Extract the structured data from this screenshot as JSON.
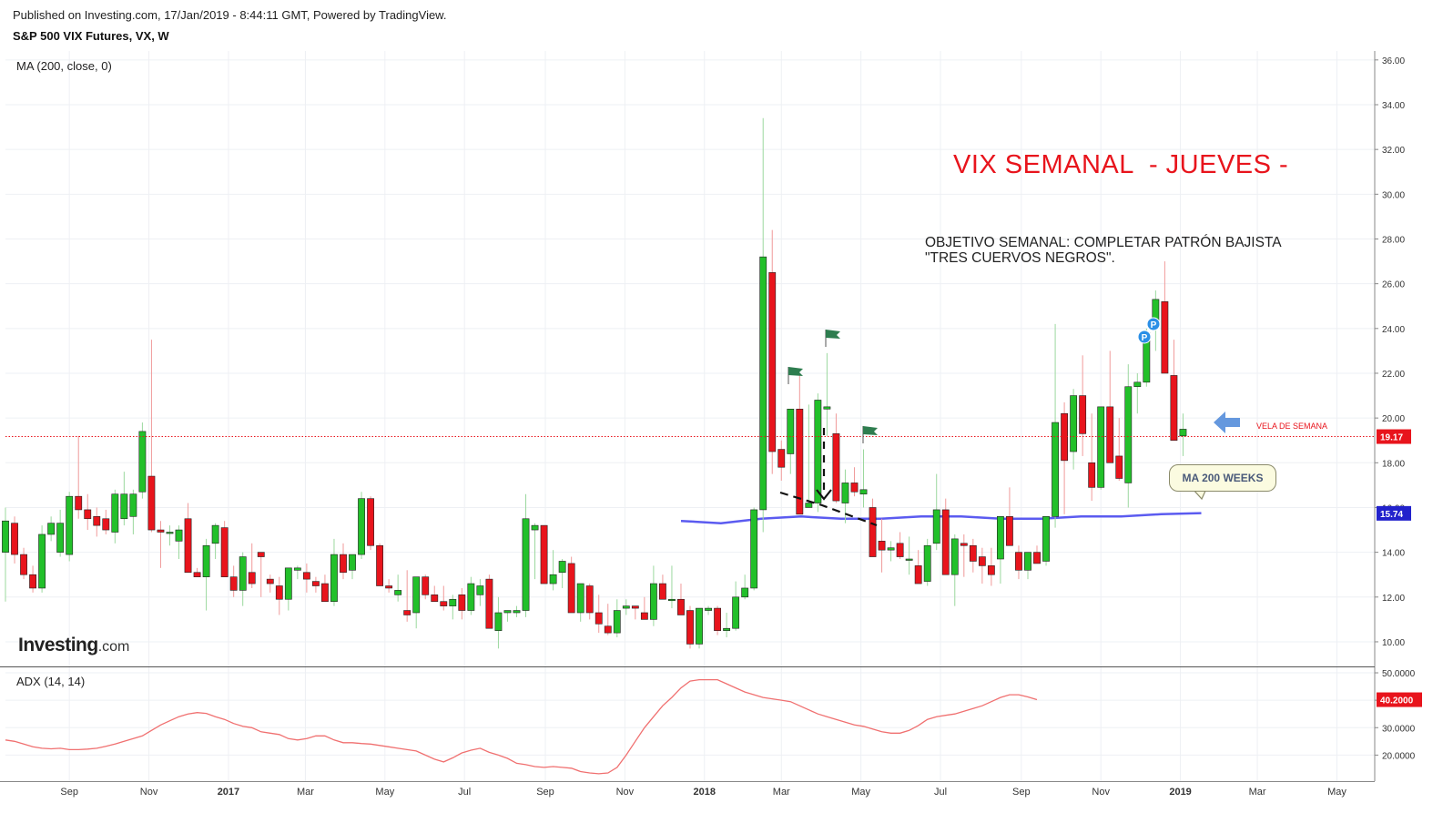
{
  "header": {
    "published": "Published on Investing.com, 17/Jan/2019 - 8:44:11 GMT, Powered by TradingView.",
    "symbol": "S&P 500 VIX Futures, VX, W"
  },
  "indicators": {
    "ma_label": "MA (200, close, 0)",
    "adx_label": "ADX (14, 14)"
  },
  "annotations": {
    "title": "VIX SEMANAL  - JUEVES -",
    "objective_line1": "OBJETIVO SEMANAL: COMPLETAR PATRÓN BAJISTA",
    "objective_line2": "\"TRES CUERVOS NEGROS\".",
    "ma_callout": "MA 200 WEEKS",
    "vela_label": "VELA DE SEMANA",
    "pivot_marker": "P"
  },
  "logo": {
    "brand": "Investing",
    "suffix": ".com"
  },
  "colors": {
    "bull": "#22c02a",
    "bear": "#e8141c",
    "ma_line": "#5b5bf0",
    "adx_line": "#f07070",
    "price_line": "#e8141c",
    "arrow": "#4a86d8",
    "flag": "#2e7d4f",
    "pivot": "#2b8fe6"
  },
  "chart_data": [
    {
      "type": "candlestick",
      "title": "S&P 500 VIX Futures, VX, W",
      "y_range": [
        8.9,
        36.4
      ],
      "y_ticks": [
        "10.00",
        "12.00",
        "14.00",
        "16.00",
        "18.00",
        "20.00",
        "22.00",
        "24.00",
        "26.00",
        "28.00",
        "30.00",
        "32.00",
        "34.00",
        "36.00"
      ],
      "x_range": [
        "2016-07-14",
        "2019-05-30"
      ],
      "x_ticks": [
        {
          "label": "Sep",
          "date": "2016-09-01"
        },
        {
          "label": "Nov",
          "date": "2016-11-01"
        },
        {
          "label": "2017",
          "date": "2017-01-01",
          "bold": true
        },
        {
          "label": "Mar",
          "date": "2017-03-01"
        },
        {
          "label": "May",
          "date": "2017-05-01"
        },
        {
          "label": "Jul",
          "date": "2017-07-01"
        },
        {
          "label": "Sep",
          "date": "2017-09-01"
        },
        {
          "label": "Nov",
          "date": "2017-11-01"
        },
        {
          "label": "2018",
          "date": "2018-01-01",
          "bold": true
        },
        {
          "label": "Mar",
          "date": "2018-03-01"
        },
        {
          "label": "May",
          "date": "2018-05-01"
        },
        {
          "label": "Jul",
          "date": "2018-07-01"
        },
        {
          "label": "Sep",
          "date": "2018-09-01"
        },
        {
          "label": "Nov",
          "date": "2018-11-01"
        },
        {
          "label": "2019",
          "date": "2019-01-01",
          "bold": true
        },
        {
          "label": "Mar",
          "date": "2019-03-01"
        },
        {
          "label": "May",
          "date": "2019-05-01"
        }
      ],
      "candles_start_date": "2016-07-14",
      "candles_interval_days": 7,
      "candles_ohlc": [
        [
          14.0,
          16.0,
          11.8,
          15.4
        ],
        [
          15.3,
          15.6,
          13.5,
          13.9
        ],
        [
          13.9,
          14.2,
          12.8,
          13.0
        ],
        [
          13.0,
          13.4,
          12.2,
          12.4
        ],
        [
          12.4,
          15.2,
          12.2,
          14.8
        ],
        [
          14.8,
          15.6,
          14.5,
          15.3
        ],
        [
          14.0,
          15.9,
          13.8,
          15.3
        ],
        [
          13.9,
          16.7,
          13.6,
          16.5
        ],
        [
          16.5,
          19.2,
          15.5,
          15.9
        ],
        [
          15.9,
          16.6,
          15.0,
          15.5
        ],
        [
          15.6,
          16.0,
          14.7,
          15.2
        ],
        [
          15.5,
          15.9,
          14.8,
          15.0
        ],
        [
          14.9,
          16.8,
          14.4,
          16.6
        ],
        [
          15.5,
          17.6,
          15.2,
          16.6
        ],
        [
          15.6,
          16.8,
          14.8,
          16.6
        ],
        [
          16.7,
          19.8,
          16.4,
          19.4
        ],
        [
          17.4,
          23.5,
          14.9,
          15.0
        ],
        [
          15.0,
          15.4,
          13.3,
          14.9
        ],
        [
          14.9,
          15.2,
          14.3,
          14.9
        ],
        [
          14.5,
          15.2,
          13.7,
          15.0
        ],
        [
          15.5,
          16.2,
          13.6,
          13.1
        ],
        [
          13.1,
          13.3,
          12.9,
          12.9
        ],
        [
          12.9,
          14.6,
          11.4,
          14.3
        ],
        [
          14.4,
          15.3,
          13.7,
          15.2
        ],
        [
          15.1,
          15.4,
          13.3,
          12.9
        ],
        [
          12.9,
          13.4,
          12.0,
          12.3
        ],
        [
          12.3,
          14.0,
          11.6,
          13.8
        ],
        [
          13.1,
          14.4,
          12.4,
          12.6
        ],
        [
          14.0,
          14.0,
          12.0,
          13.8
        ],
        [
          12.8,
          13.0,
          12.2,
          12.6
        ],
        [
          12.5,
          12.9,
          11.2,
          11.9
        ],
        [
          11.9,
          13.2,
          11.4,
          13.3
        ],
        [
          13.2,
          13.4,
          12.8,
          13.3
        ],
        [
          13.1,
          13.5,
          12.2,
          12.8
        ],
        [
          12.7,
          12.9,
          12.2,
          12.5
        ],
        [
          12.6,
          13.0,
          11.8,
          11.8
        ],
        [
          11.8,
          14.6,
          11.6,
          13.9
        ],
        [
          13.9,
          14.4,
          12.8,
          13.1
        ],
        [
          13.2,
          13.9,
          12.8,
          13.9
        ],
        [
          13.9,
          16.7,
          13.7,
          16.4
        ],
        [
          16.4,
          16.5,
          14.1,
          14.3
        ],
        [
          14.3,
          14.4,
          12.9,
          12.5
        ],
        [
          12.5,
          12.8,
          12.2,
          12.4
        ],
        [
          12.1,
          13.0,
          11.8,
          12.3
        ],
        [
          11.4,
          13.2,
          10.9,
          11.2
        ],
        [
          11.3,
          12.9,
          10.6,
          12.9
        ],
        [
          12.9,
          13.0,
          11.9,
          12.1
        ],
        [
          12.1,
          12.5,
          11.8,
          11.8
        ],
        [
          11.8,
          12.5,
          11.4,
          11.6
        ],
        [
          11.6,
          12.1,
          11.0,
          11.9
        ],
        [
          12.1,
          12.4,
          11.0,
          11.4
        ],
        [
          11.4,
          12.9,
          11.2,
          12.6
        ],
        [
          12.1,
          12.8,
          11.6,
          12.5
        ],
        [
          12.8,
          13.0,
          10.6,
          10.6
        ],
        [
          10.5,
          12.0,
          9.7,
          11.3
        ],
        [
          11.3,
          11.4,
          10.9,
          11.4
        ],
        [
          11.3,
          11.6,
          11.1,
          11.4
        ],
        [
          11.4,
          16.6,
          11.1,
          15.5
        ],
        [
          15.0,
          15.3,
          12.8,
          15.2
        ],
        [
          15.2,
          15.2,
          12.7,
          12.6
        ],
        [
          12.6,
          14.1,
          12.3,
          13.0
        ],
        [
          13.1,
          13.7,
          12.4,
          13.6
        ],
        [
          13.5,
          13.8,
          11.5,
          11.3
        ],
        [
          11.3,
          12.6,
          10.9,
          12.6
        ],
        [
          12.5,
          12.6,
          11.0,
          11.3
        ],
        [
          11.3,
          12.1,
          10.4,
          10.8
        ],
        [
          10.7,
          11.7,
          10.3,
          10.4
        ],
        [
          10.4,
          11.9,
          10.2,
          11.4
        ],
        [
          11.5,
          11.9,
          11.2,
          11.6
        ],
        [
          11.6,
          11.6,
          11.0,
          11.5
        ],
        [
          11.3,
          12.0,
          11.2,
          11.0
        ],
        [
          11.0,
          13.4,
          10.7,
          12.6
        ],
        [
          12.6,
          13.0,
          11.9,
          11.9
        ],
        [
          11.9,
          13.4,
          11.5,
          11.9
        ],
        [
          11.9,
          12.6,
          11.2,
          11.2
        ],
        [
          11.4,
          11.6,
          9.7,
          9.9
        ],
        [
          9.9,
          11.5,
          9.7,
          11.5
        ],
        [
          11.4,
          11.6,
          11.2,
          11.5
        ],
        [
          11.5,
          11.6,
          10.3,
          10.5
        ],
        [
          10.5,
          11.3,
          10.2,
          10.6
        ],
        [
          10.6,
          12.7,
          10.5,
          12.0
        ],
        [
          12.0,
          13.0,
          11.9,
          12.4
        ],
        [
          12.4,
          16.0,
          12.3,
          15.9
        ],
        [
          15.9,
          33.4,
          14.9,
          27.2
        ],
        [
          26.5,
          28.4,
          17.5,
          18.5
        ],
        [
          18.6,
          19.0,
          17.2,
          17.8
        ],
        [
          18.4,
          20.0,
          17.5,
          20.4
        ],
        [
          20.4,
          21.9,
          15.9,
          15.7
        ],
        [
          16.0,
          20.6,
          16.0,
          16.2
        ],
        [
          16.2,
          21.1,
          15.8,
          20.8
        ],
        [
          20.4,
          22.9,
          19.2,
          20.5
        ],
        [
          19.3,
          20.2,
          16.2,
          16.3
        ],
        [
          16.2,
          17.7,
          15.3,
          17.1
        ],
        [
          17.1,
          17.8,
          16.5,
          16.7
        ],
        [
          16.6,
          18.6,
          16.0,
          16.8
        ],
        [
          16.0,
          16.4,
          13.8,
          13.8
        ],
        [
          14.5,
          15.5,
          13.1,
          14.1
        ],
        [
          14.1,
          14.5,
          13.6,
          14.2
        ],
        [
          14.4,
          14.9,
          13.7,
          13.8
        ],
        [
          13.7,
          14.7,
          13.0,
          13.7
        ],
        [
          13.4,
          14.1,
          12.6,
          12.6
        ],
        [
          12.7,
          14.6,
          12.5,
          14.3
        ],
        [
          14.4,
          17.5,
          14.1,
          15.9
        ],
        [
          15.9,
          16.4,
          13.5,
          13.0
        ],
        [
          13.0,
          14.8,
          11.6,
          14.6
        ],
        [
          14.4,
          14.8,
          12.9,
          14.3
        ],
        [
          14.3,
          14.6,
          13.1,
          13.6
        ],
        [
          13.8,
          14.2,
          12.6,
          13.4
        ],
        [
          13.4,
          14.2,
          12.5,
          13.0
        ],
        [
          13.7,
          13.9,
          12.6,
          15.6
        ],
        [
          15.6,
          16.9,
          14.6,
          14.3
        ],
        [
          14.0,
          14.3,
          12.8,
          13.2
        ],
        [
          13.2,
          13.7,
          12.8,
          14.0
        ],
        [
          14.0,
          14.3,
          13.8,
          13.5
        ],
        [
          13.6,
          14.6,
          13.4,
          15.6
        ],
        [
          15.6,
          24.2,
          15.1,
          19.8
        ],
        [
          20.2,
          20.7,
          15.7,
          18.1
        ],
        [
          18.5,
          21.3,
          17.7,
          21.0
        ],
        [
          21.0,
          22.8,
          18.3,
          19.3
        ],
        [
          18.0,
          20.2,
          16.3,
          16.9
        ],
        [
          16.9,
          19.5,
          16.8,
          20.5
        ],
        [
          20.5,
          23.0,
          18.1,
          18.0
        ],
        [
          18.3,
          20.0,
          17.2,
          17.3
        ],
        [
          17.1,
          22.4,
          16.0,
          21.4
        ],
        [
          21.4,
          22.0,
          20.2,
          21.6
        ],
        [
          21.6,
          24.0,
          21.4,
          23.8
        ],
        [
          24.2,
          25.7,
          23.0,
          25.3
        ],
        [
          25.2,
          27.0,
          23.9,
          22.0
        ],
        [
          21.9,
          23.5,
          20.1,
          19.0
        ],
        [
          19.2,
          20.2,
          18.3,
          19.5
        ]
      ],
      "overlays": {
        "ma_200": {
          "start": "2017-12-14",
          "end": "2019-01-17",
          "values": [
            15.4,
            15.3,
            15.5,
            15.6,
            15.5,
            15.5,
            15.6,
            15.6,
            15.5,
            15.5,
            15.6,
            15.6,
            15.7,
            15.75
          ]
        },
        "last_price": 19.17,
        "ma_last": 15.74
      }
    },
    {
      "type": "line",
      "title": "ADX (14, 14)",
      "y_range": [
        10.5,
        52
      ],
      "y_ticks": [
        "20.0000",
        "30.0000",
        "40.0000",
        "50.0000"
      ],
      "x_start": "2016-07-14",
      "x_interval_days": 7,
      "values": [
        25.5,
        25,
        24,
        23,
        22.5,
        22.3,
        22.5,
        22,
        22,
        22.2,
        22.5,
        23.2,
        24,
        25,
        26,
        27,
        29,
        31,
        32.5,
        34,
        35,
        35.5,
        35.2,
        34,
        33,
        31.5,
        30.5,
        30,
        28.5,
        28,
        27.5,
        26,
        25.5,
        26,
        27,
        27,
        25.5,
        24.5,
        24.5,
        24.2,
        24,
        23.5,
        23,
        22.5,
        22,
        21.5,
        20,
        18.5,
        17.5,
        19,
        20.8,
        21.8,
        22.5,
        21,
        20,
        18.8,
        17,
        16.5,
        15.8,
        15.5,
        15.8,
        15.5,
        15.2,
        14,
        13.5,
        13.2,
        13.5,
        15.5,
        20,
        25,
        30,
        34,
        38,
        41,
        44.5,
        47,
        47.5,
        47.5,
        47.5,
        46,
        44.5,
        43,
        42,
        41,
        40.5,
        40,
        39.5,
        38,
        36.5,
        35,
        34,
        33,
        32,
        31,
        30.5,
        29.5,
        28.5,
        28,
        28,
        29,
        30.8,
        33,
        34,
        34.5,
        35,
        36,
        37,
        38,
        39.5,
        41,
        42,
        42,
        41.2,
        40.2
      ]
    }
  ]
}
